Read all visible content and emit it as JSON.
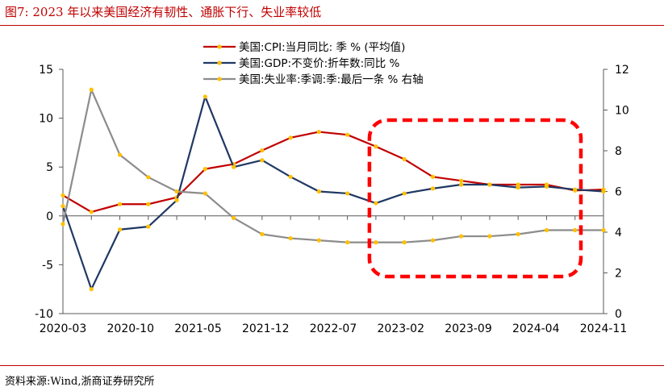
{
  "title": "图7:   2023 年以来美国经济有韧性、通胀下行、失业率较低",
  "source": "资料来源:Wind,浙商证券研究所",
  "colors": {
    "cpi": "#c00000",
    "gdp": "#1f3864",
    "unemp": "#8c8c8c",
    "marker": "#ffc000",
    "highlight": "#ff0000",
    "accent": "#c00000"
  },
  "chart_data": {
    "type": "line",
    "x": [
      "2020-03",
      "2020-06",
      "2020-09",
      "2020-12",
      "2021-03",
      "2021-06",
      "2021-09",
      "2021-12",
      "2022-03",
      "2022-06",
      "2022-09",
      "2022-12",
      "2023-03",
      "2023-06",
      "2023-09",
      "2023-12",
      "2024-03",
      "2024-06",
      "2024-09",
      "2024-12"
    ],
    "tick_labels": [
      "2020-03",
      "2020-10",
      "2021-05",
      "2021-12",
      "2022-07",
      "2023-02",
      "2023-09",
      "2024-04",
      "2024-11"
    ],
    "series": [
      {
        "name": "美国:CPI:当月同比: 季 % (平均值)",
        "axis": "left",
        "color": "#c00000",
        "values": [
          2.1,
          0.4,
          1.2,
          1.2,
          1.9,
          4.8,
          5.3,
          6.7,
          8.0,
          8.6,
          8.3,
          7.1,
          5.8,
          4.0,
          3.6,
          3.2,
          3.2,
          3.2,
          2.6,
          2.7
        ]
      },
      {
        "name": "美国:GDP:不变价:折年数:同比 %",
        "axis": "left",
        "color": "#1f3864",
        "values": [
          1.0,
          -7.5,
          -1.4,
          -1.1,
          1.6,
          12.2,
          5.0,
          5.7,
          4.0,
          2.5,
          2.3,
          1.3,
          2.3,
          2.8,
          3.2,
          3.2,
          2.9,
          3.0,
          2.7,
          2.5
        ]
      },
      {
        "name": "美国:失业率:季调:季:最后一条 % 右轴",
        "axis": "right",
        "color": "#8c8c8c",
        "values": [
          4.4,
          11.0,
          7.8,
          6.7,
          6.0,
          5.9,
          4.7,
          3.9,
          3.7,
          3.6,
          3.5,
          3.5,
          3.5,
          3.6,
          3.8,
          3.8,
          3.9,
          4.1,
          4.1,
          4.1
        ]
      }
    ],
    "ylim_left": [
      -10,
      15
    ],
    "yticks_left": [
      "15",
      "10",
      "5",
      "0",
      "-5",
      "-10"
    ],
    "ylim_right": [
      0,
      12
    ],
    "yticks_right": [
      "12",
      "10",
      "8",
      "6",
      "4",
      "2",
      "0"
    ],
    "legend_position": "top",
    "grid": false,
    "highlight_box": {
      "from": "2022-12",
      "to": "2024-12",
      "style": "dashed red rounded rectangle"
    }
  }
}
